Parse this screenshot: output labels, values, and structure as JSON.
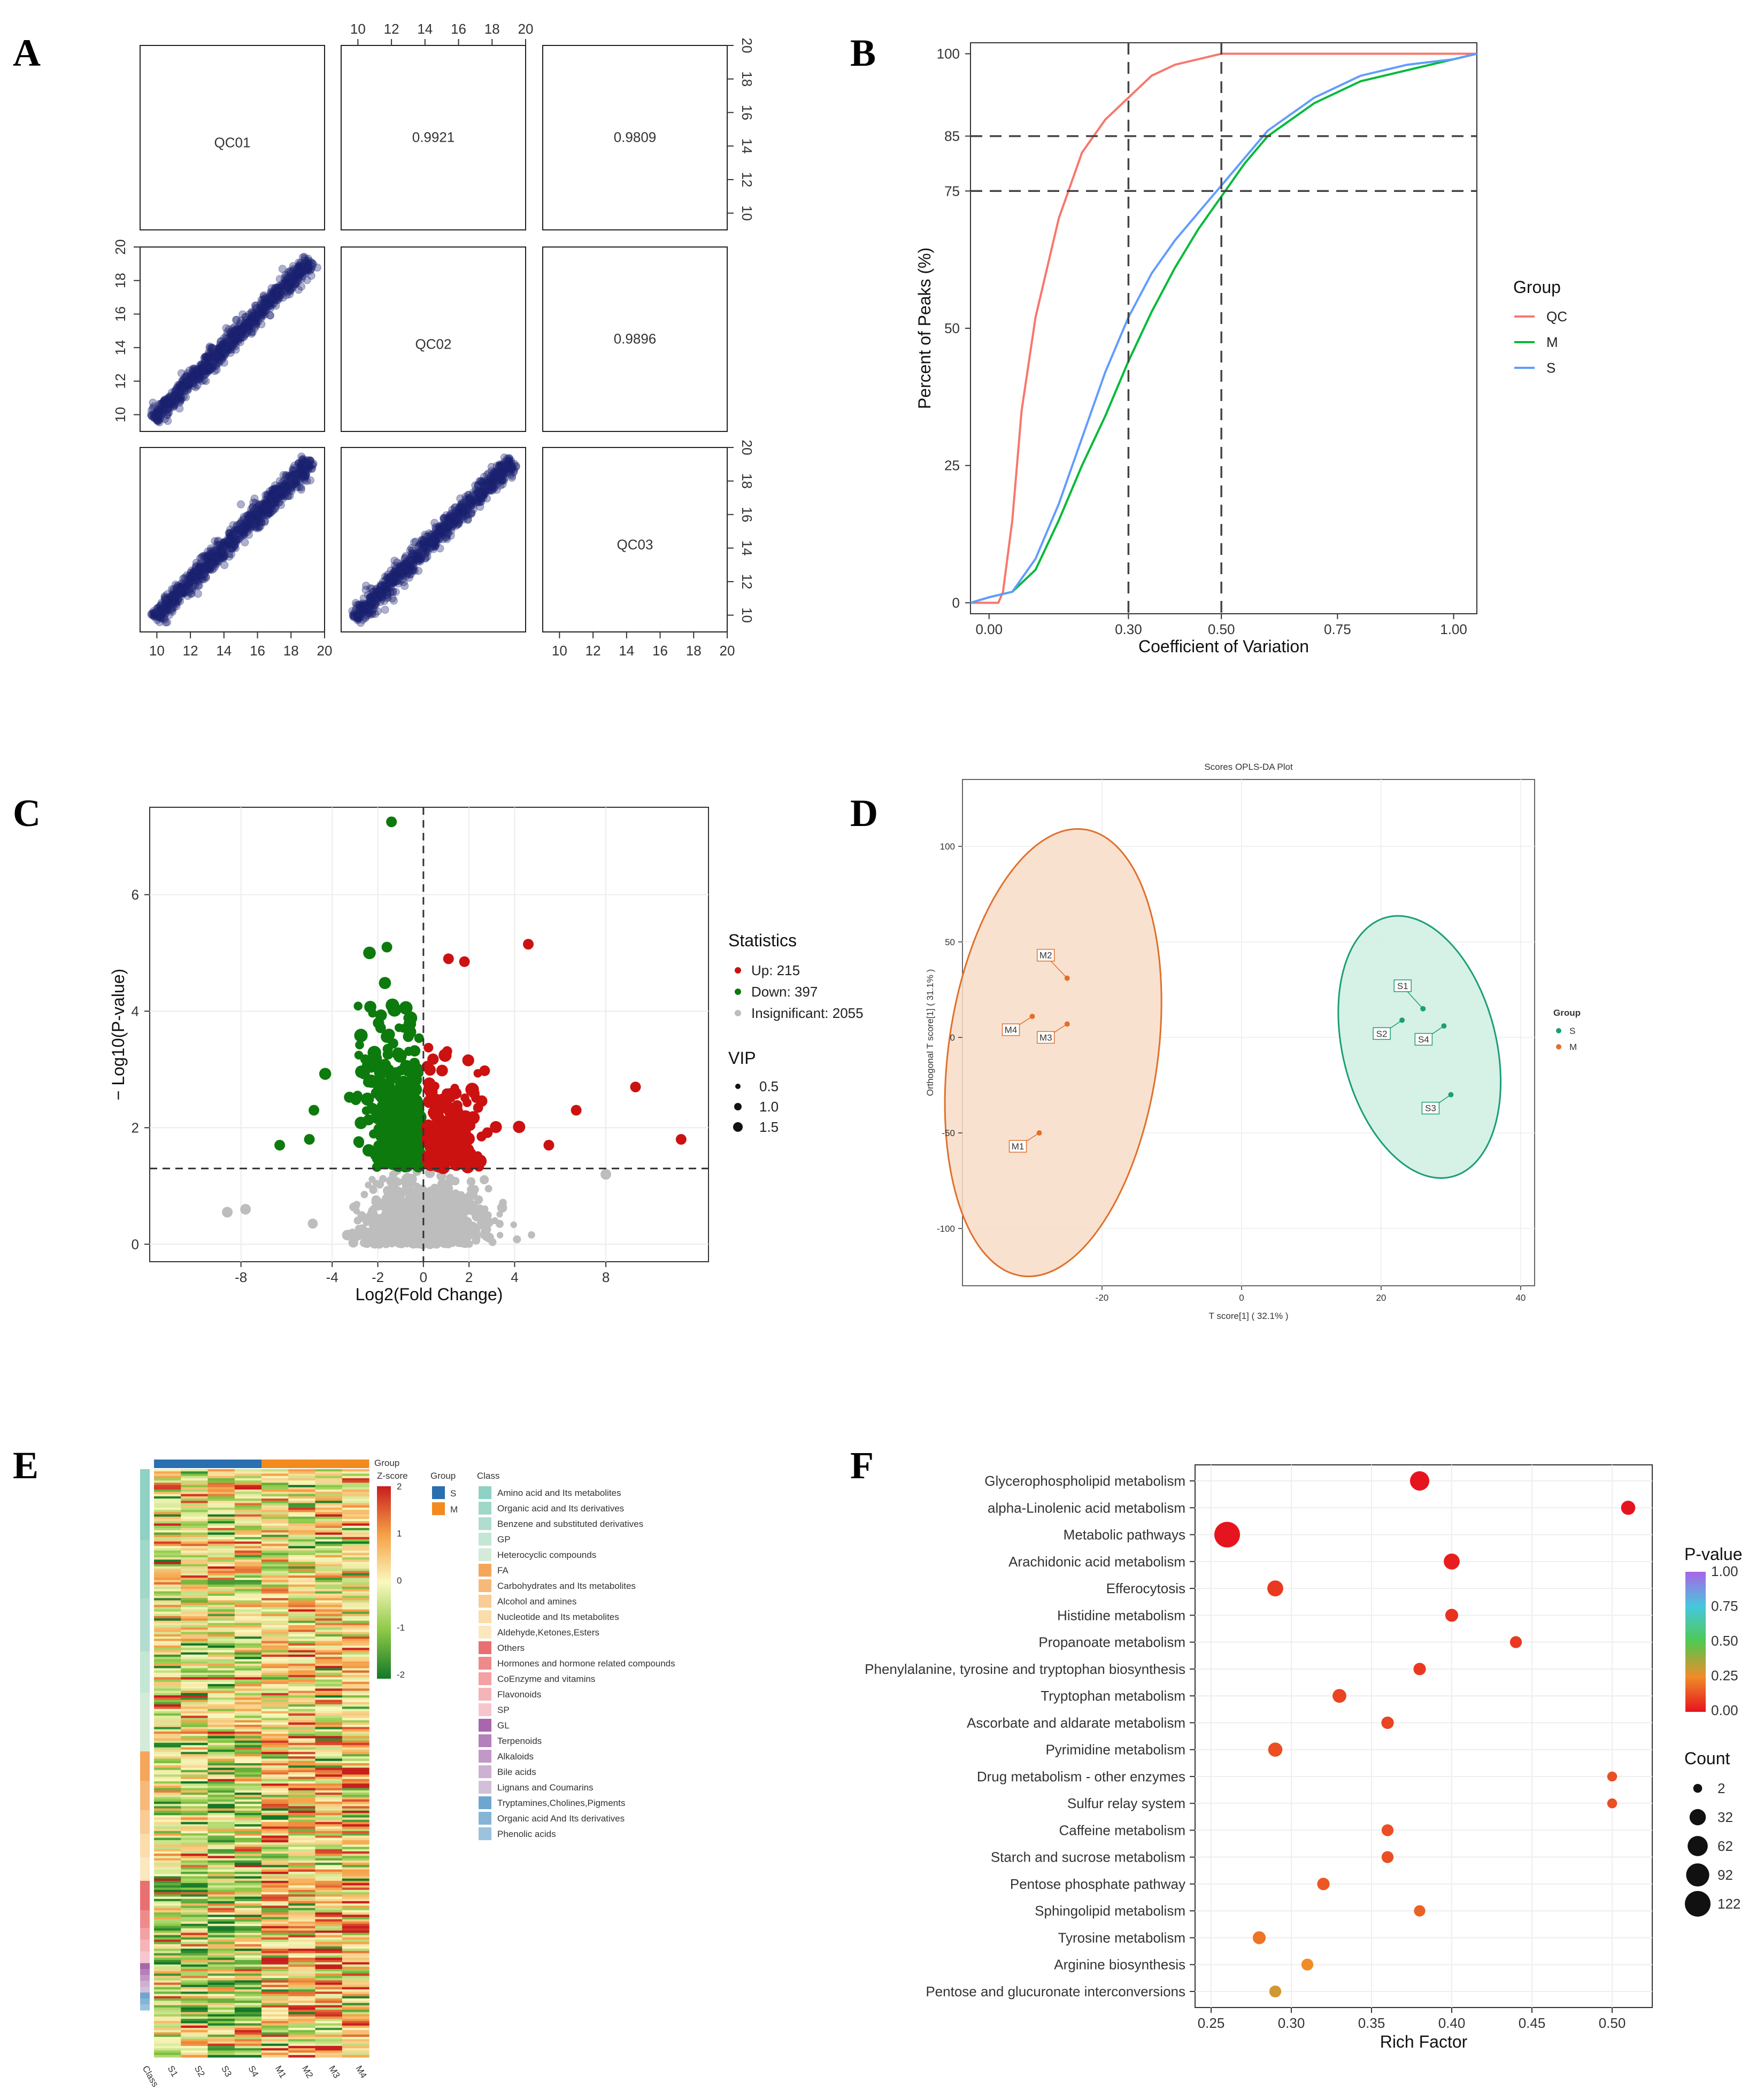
{
  "panels": [
    "A",
    "B",
    "C",
    "D",
    "E",
    "F"
  ],
  "chart_data": [
    {
      "panel": "A",
      "type": "scatter",
      "title": "",
      "samples": [
        "QC01",
        "QC02",
        "QC03"
      ],
      "correlations": [
        {
          "pair": "QC01-QC02",
          "value": "0.9921"
        },
        {
          "pair": "QC01-QC03",
          "value": "0.9809"
        },
        {
          "pair": "QC02-QC03",
          "value": "0.9896"
        }
      ],
      "ticks": [
        "10",
        "12",
        "14",
        "16",
        "18",
        "20"
      ],
      "axis_range": [
        9,
        20
      ]
    },
    {
      "panel": "B",
      "type": "line",
      "xlabel": "Coefficient of Variation",
      "ylabel": "Percent of Peaks (%)",
      "xticks": [
        "0.00",
        "0.30",
        "0.50",
        "0.75",
        "1.00"
      ],
      "xtick_values": [
        0,
        0.3,
        0.5,
        0.75,
        1.0
      ],
      "yticks": [
        "0",
        "25",
        "50",
        "75",
        "85",
        "100"
      ],
      "ytick_values": [
        0,
        25,
        50,
        75,
        85,
        100
      ],
      "xlim": [
        -0.04,
        1.05
      ],
      "ylim": [
        -2,
        102
      ],
      "vlines": [
        0.3,
        0.5
      ],
      "hlines": [
        75,
        85
      ],
      "legend_title": "Group",
      "series": [
        {
          "name": "QC",
          "color": "#f8766d",
          "x": [
            -0.04,
            0,
            0.02,
            0.03,
            0.05,
            0.07,
            0.1,
            0.15,
            0.2,
            0.25,
            0.3,
            0.35,
            0.4,
            0.45,
            0.5,
            1.05
          ],
          "y": [
            0,
            0,
            0,
            2,
            15,
            35,
            52,
            70,
            82,
            88,
            92,
            96,
            98,
            99,
            100,
            100
          ]
        },
        {
          "name": "M",
          "color": "#00ba38",
          "x": [
            -0.04,
            0,
            0.05,
            0.1,
            0.15,
            0.2,
            0.25,
            0.3,
            0.35,
            0.4,
            0.45,
            0.5,
            0.55,
            0.6,
            0.7,
            0.8,
            0.9,
            1.0,
            1.05
          ],
          "y": [
            0,
            1,
            2,
            6,
            15,
            25,
            34,
            44,
            53,
            61,
            68,
            74,
            80,
            85,
            91,
            95,
            97,
            99,
            100
          ]
        },
        {
          "name": "S",
          "color": "#619cff",
          "x": [
            -0.04,
            0,
            0.05,
            0.1,
            0.15,
            0.2,
            0.25,
            0.3,
            0.35,
            0.4,
            0.45,
            0.5,
            0.55,
            0.6,
            0.7,
            0.8,
            0.9,
            1.0,
            1.05
          ],
          "y": [
            0,
            1,
            2,
            8,
            18,
            30,
            42,
            52,
            60,
            66,
            71,
            76,
            81,
            86,
            92,
            96,
            98,
            99,
            100
          ]
        }
      ]
    },
    {
      "panel": "C",
      "type": "scatter",
      "xlabel": "Log2(Fold Change)",
      "ylabel": "− Log10(P-value)",
      "xticks": [
        "-8",
        "-4",
        "-2",
        "0",
        "2",
        "4",
        "8"
      ],
      "xtick_values": [
        -8,
        -4,
        -2,
        0,
        2,
        4,
        8
      ],
      "yticks": [
        "0",
        "2",
        "4",
        "6"
      ],
      "ytick_values": [
        0,
        2,
        4,
        6
      ],
      "xlim": [
        -12,
        12.5
      ],
      "ylim": [
        -0.3,
        7.5
      ],
      "threshold_y": 1.3,
      "legend_stats_title": "Statistics",
      "legend_stats": [
        {
          "label": "Up: 215",
          "color": "#cc1111"
        },
        {
          "label": "Down: 397",
          "color": "#0d7a0d"
        },
        {
          "label": "Insignificant: 2055",
          "color": "#bdbdbd"
        }
      ],
      "legend_vip_title": "VIP",
      "legend_vip": [
        "0.5",
        "1.0",
        "1.5"
      ],
      "highlight_points": [
        {
          "x": -1.4,
          "y": 7.25,
          "g": "down"
        },
        {
          "x": 4.6,
          "y": 5.15,
          "g": "up"
        },
        {
          "x": 9.3,
          "y": 2.7,
          "g": "up"
        },
        {
          "x": 11.3,
          "y": 1.8,
          "g": "up"
        },
        {
          "x": 6.7,
          "y": 2.3,
          "g": "up"
        },
        {
          "x": 5.5,
          "y": 1.7,
          "g": "up"
        },
        {
          "x": -6.3,
          "y": 1.7,
          "g": "down"
        },
        {
          "x": -5.0,
          "y": 1.8,
          "g": "down"
        },
        {
          "x": -4.8,
          "y": 2.3,
          "g": "down"
        },
        {
          "x": -1.6,
          "y": 5.1,
          "g": "down"
        },
        {
          "x": 1.1,
          "y": 4.9,
          "g": "up"
        },
        {
          "x": 1.8,
          "y": 4.85,
          "g": "up"
        },
        {
          "x": 8.0,
          "y": 1.2,
          "g": "ns"
        },
        {
          "x": -7.8,
          "y": 0.6,
          "g": "ns"
        },
        {
          "x": -8.6,
          "y": 0.55,
          "g": "ns"
        }
      ]
    },
    {
      "panel": "D",
      "type": "scatter",
      "title": "Scores OPLS-DA Plot",
      "xlabel": "T score[1] ( 32.1% )",
      "ylabel": "Orthogonal T score[1] ( 31.1% )",
      "xticks": [
        "-20",
        "0",
        "20",
        "40"
      ],
      "xtick_values": [
        -20,
        0,
        20,
        40
      ],
      "yticks": [
        "-100",
        "-50",
        "0",
        "50",
        "100"
      ],
      "ytick_values": [
        -100,
        -50,
        0,
        50,
        100
      ],
      "xlim": [
        -40,
        42
      ],
      "ylim": [
        -130,
        135
      ],
      "legend_title": "Group",
      "groups": [
        {
          "name": "S",
          "color": "#1b9e77",
          "fill": "#cfeee0",
          "ellipse": {
            "cx": 25.5,
            "cy": -5,
            "rx": 11,
            "ry": 70,
            "tilt": -14
          },
          "points": [
            {
              "label": "S1",
              "x": 26,
              "y": 15
            },
            {
              "label": "S2",
              "x": 23,
              "y": 9
            },
            {
              "label": "S3",
              "x": 30,
              "y": -30
            },
            {
              "label": "S4",
              "x": 29,
              "y": 6
            }
          ]
        },
        {
          "name": "M",
          "color": "#e0702a",
          "fill": "#f8dcc8",
          "ellipse": {
            "cx": -27,
            "cy": -8,
            "rx": 15,
            "ry": 118,
            "tilt": 8
          },
          "points": [
            {
              "label": "M1",
              "x": -29,
              "y": -50
            },
            {
              "label": "M2",
              "x": -25,
              "y": 31
            },
            {
              "label": "M3",
              "x": -25,
              "y": 7
            },
            {
              "label": "M4",
              "x": -30,
              "y": 11
            }
          ]
        }
      ]
    },
    {
      "panel": "E",
      "type": "heatmap",
      "columns": [
        "S1",
        "S2",
        "S3",
        "S4",
        "M1",
        "M2",
        "M3",
        "M4"
      ],
      "column_class_label": "Class",
      "top_annotation_label": "Group",
      "colorbar_title": "Z-score",
      "colorbar_ticks": [
        "2",
        "1",
        "0",
        "-1",
        "-2"
      ],
      "group_legend_title": "Group",
      "groups": [
        {
          "name": "S",
          "color": "#2a6fb0"
        },
        {
          "name": "M",
          "color": "#f28a1e"
        }
      ],
      "class_legend_title": "Class",
      "classes": [
        {
          "name": "Amino acid and Its metabolites",
          "color": "#8fd1c4",
          "share": 0.12
        },
        {
          "name": "Organic acid and Its derivatives",
          "color": "#9fd8c8",
          "share": 0.1
        },
        {
          "name": "Benzene and substituted derivatives",
          "color": "#b0ddd0",
          "share": 0.09
        },
        {
          "name": "GP",
          "color": "#c4e6d4",
          "share": 0.07
        },
        {
          "name": "Heterocyclic compounds",
          "color": "#d3ebd8",
          "share": 0.1
        },
        {
          "name": "FA",
          "color": "#f5a65b",
          "share": 0.05
        },
        {
          "name": "Carbohydrates and Its metabolites",
          "color": "#f7b97a",
          "share": 0.05
        },
        {
          "name": "Alcohol and amines",
          "color": "#f9cb95",
          "share": 0.04
        },
        {
          "name": "Nucleotide and Its metabolites",
          "color": "#fbdcab",
          "share": 0.04
        },
        {
          "name": "Aldehyde,Ketones,Esters",
          "color": "#fce8be",
          "share": 0.04
        },
        {
          "name": "Others",
          "color": "#ea6f70",
          "share": 0.05
        },
        {
          "name": "Hormones and hormone related compounds",
          "color": "#ef8a8b",
          "share": 0.03
        },
        {
          "name": "CoEnzyme and vitamins",
          "color": "#f3a1a3",
          "share": 0.02
        },
        {
          "name": "Flavonoids",
          "color": "#f5b4b8",
          "share": 0.02
        },
        {
          "name": "SP",
          "color": "#f6c6cc",
          "share": 0.02
        },
        {
          "name": "GL",
          "color": "#a866ad",
          "share": 0.01
        },
        {
          "name": "Terpenoids",
          "color": "#b57fba",
          "share": 0.01
        },
        {
          "name": "Alkaloids",
          "color": "#c298c7",
          "share": 0.01
        },
        {
          "name": "Bile acids",
          "color": "#cdb0d2",
          "share": 0.01
        },
        {
          "name": "Lignans and Coumarins",
          "color": "#d2c0da",
          "share": 0.01
        },
        {
          "name": "Tryptamines,Cholines,Pigments",
          "color": "#6fa6cf",
          "share": 0.01
        },
        {
          "name": "Organic acid And Its derivatives",
          "color": "#86b4d6",
          "share": 0.01
        },
        {
          "name": "Phenolic acids",
          "color": "#9cc2dd",
          "share": 0.01
        }
      ]
    },
    {
      "panel": "F",
      "type": "scatter",
      "xlabel": "Rich Factor",
      "xticks": [
        "0.25",
        "0.30",
        "0.35",
        "0.40",
        "0.45",
        "0.50"
      ],
      "xtick_values": [
        0.25,
        0.3,
        0.35,
        0.4,
        0.45,
        0.5
      ],
      "xlim": [
        0.24,
        0.525
      ],
      "colorbar_title": "P-value",
      "colorbar_ticks": [
        "1.00",
        "0.75",
        "0.50",
        "0.25",
        "0.00"
      ],
      "size_legend_title": "Count",
      "size_legend": [
        "2",
        "32",
        "62",
        "92",
        "122"
      ],
      "pathways": [
        {
          "name": "Glycerophospholipid metabolism",
          "rich": 0.38,
          "count": 55,
          "p": 0.0
        },
        {
          "name": "alpha-Linolenic acid metabolism",
          "rich": 0.51,
          "count": 20,
          "p": 0.0
        },
        {
          "name": "Metabolic pathways",
          "rich": 0.26,
          "count": 122,
          "p": 0.0
        },
        {
          "name": "Arachidonic acid metabolism",
          "rich": 0.4,
          "count": 30,
          "p": 0.02
        },
        {
          "name": "Efferocytosis",
          "rich": 0.29,
          "count": 30,
          "p": 0.08
        },
        {
          "name": "Histidine metabolism",
          "rich": 0.4,
          "count": 14,
          "p": 0.06
        },
        {
          "name": "Propanoate metabolism",
          "rich": 0.44,
          "count": 10,
          "p": 0.08
        },
        {
          "name": "Phenylalanine, tyrosine and tryptophan biosynthesis",
          "rich": 0.38,
          "count": 12,
          "p": 0.08
        },
        {
          "name": "Tryptophan metabolism",
          "rich": 0.33,
          "count": 18,
          "p": 0.1
        },
        {
          "name": "Ascorbate and aldarate metabolism",
          "rich": 0.36,
          "count": 12,
          "p": 0.1
        },
        {
          "name": "Pyrimidine metabolism",
          "rich": 0.29,
          "count": 20,
          "p": 0.12
        },
        {
          "name": "Drug metabolism - other enzymes",
          "rich": 0.5,
          "count": 4,
          "p": 0.12
        },
        {
          "name": "Sulfur relay system",
          "rich": 0.5,
          "count": 4,
          "p": 0.12
        },
        {
          "name": "Caffeine metabolism",
          "rich": 0.36,
          "count": 10,
          "p": 0.12
        },
        {
          "name": "Starch and sucrose metabolism",
          "rich": 0.36,
          "count": 10,
          "p": 0.12
        },
        {
          "name": "Pentose phosphate pathway",
          "rich": 0.32,
          "count": 12,
          "p": 0.14
        },
        {
          "name": "Sphingolipid metabolism",
          "rich": 0.38,
          "count": 8,
          "p": 0.16
        },
        {
          "name": "Tyrosine metabolism",
          "rich": 0.28,
          "count": 14,
          "p": 0.2
        },
        {
          "name": "Arginine biosynthesis",
          "rich": 0.31,
          "count": 10,
          "p": 0.25
        },
        {
          "name": "Pentose and glucuronate interconversions",
          "rich": 0.29,
          "count": 10,
          "p": 0.3
        }
      ]
    }
  ]
}
